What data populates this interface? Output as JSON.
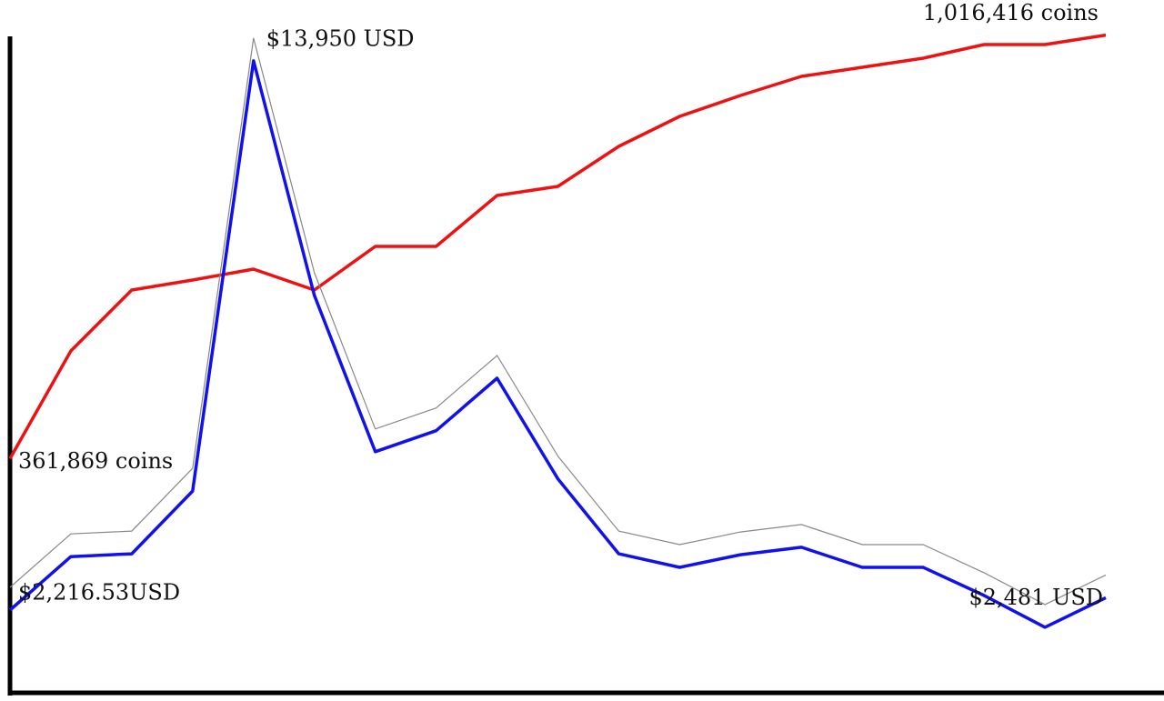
{
  "chart_data": {
    "type": "line",
    "categories": [
      null,
      null,
      null,
      null,
      null,
      null,
      null,
      null,
      null,
      null,
      null,
      null,
      null,
      null,
      null,
      null,
      null,
      null,
      null
    ],
    "ylim": [
      450,
      14550
    ],
    "y2lim": [
      0,
      1020000
    ],
    "series": [
      {
        "color": "#ee1111",
        "axis": "y2",
        "values": [
          361869,
          528300,
          622400,
          637900,
          654700,
          622400,
          689900,
          689900,
          768500,
          782600,
          844400,
          890800,
          923100,
          952600,
          966600,
          980700,
          1001800,
          1001800,
          1016416
        ],
        "value_labels": [
          "361,869 coins",
          null,
          null,
          null,
          null,
          null,
          null,
          null,
          null,
          null,
          null,
          null,
          null,
          null,
          null,
          null,
          null,
          null,
          "1,016,416 coins"
        ]
      },
      {
        "color": "#1111ee",
        "values": [
          2216.53,
          3360,
          3420,
          4760,
          13950,
          8940,
          5600,
          6050,
          7170,
          5020,
          3420,
          3130,
          3400,
          3560,
          3130,
          3130,
          2530,
          1850,
          2481
        ],
        "value_labels": [
          "$2,216.53USD",
          null,
          null,
          null,
          "$13,950 USD",
          null,
          null,
          null,
          null,
          null,
          null,
          null,
          null,
          null,
          null,
          null,
          null,
          null,
          "$2,481 USD"
        ]
      }
    ]
  }
}
